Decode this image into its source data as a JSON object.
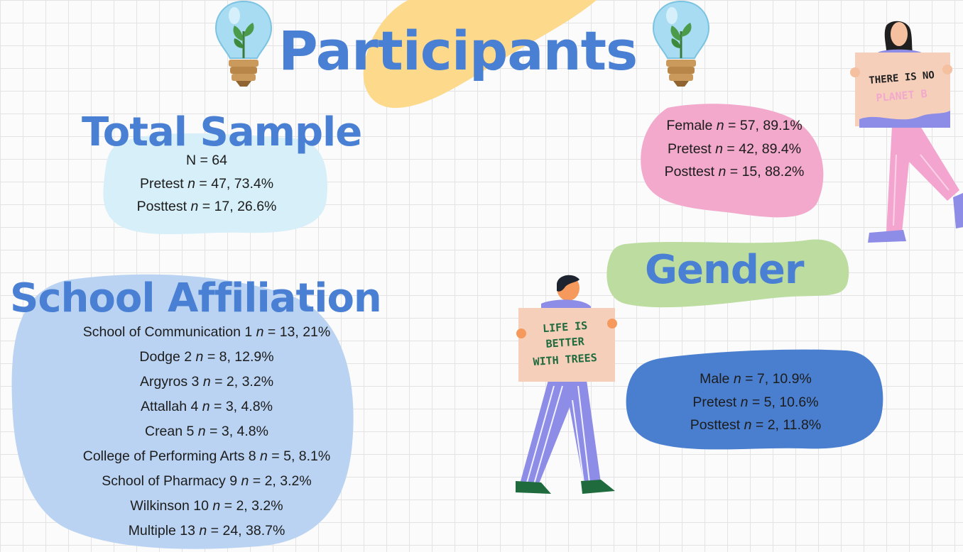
{
  "title": "Participants",
  "total_sample": {
    "heading": "Total Sample",
    "lines": [
      {
        "pre": "N = 64",
        "italic": "",
        "post": ""
      },
      {
        "pre": "Pretest ",
        "italic": "n",
        "post": " = 47, 73.4%"
      },
      {
        "pre": "Posttest ",
        "italic": "n",
        "post": " = 17, 26.6%"
      }
    ]
  },
  "gender": {
    "heading": "Gender",
    "female": [
      {
        "pre": "Female ",
        "italic": "n",
        "post": " = 57, 89.1%"
      },
      {
        "pre": "Pretest ",
        "italic": "n",
        "post": " = 42, 89.4%"
      },
      {
        "pre": "Posttest ",
        "italic": "n",
        "post": " = 15, 88.2%"
      }
    ],
    "male": [
      {
        "pre": "Male ",
        "italic": "n",
        "post": " = 7, 10.9%"
      },
      {
        "pre": "Pretest ",
        "italic": "n",
        "post": " = 5, 10.6%"
      },
      {
        "pre": "Posttest ",
        "italic": "n",
        "post": " = 2, 11.8%"
      }
    ]
  },
  "school_affiliation": {
    "heading": "School Affiliation",
    "lines": [
      {
        "pre": "School of Communication 1 ",
        "italic": "n",
        "post": " = 13, 21%"
      },
      {
        "pre": "Dodge 2 ",
        "italic": "n",
        "post": " = 8, 12.9%"
      },
      {
        "pre": "Argyros 3 ",
        "italic": "n",
        "post": " = 2, 3.2%"
      },
      {
        "pre": "Attallah 4 ",
        "italic": "n",
        "post": " = 3, 4.8%"
      },
      {
        "pre": "Crean 5 ",
        "italic": "n",
        "post": " = 3, 4.8%"
      },
      {
        "pre": "College of Performing Arts 8 ",
        "italic": "n",
        "post": " = 5, 8.1%"
      },
      {
        "pre": "School of Pharmacy 9 ",
        "italic": "n",
        "post": " = 2, 3.2%"
      },
      {
        "pre": "Wilkinson 10 ",
        "italic": "n",
        "post": " = 2, 3.2%"
      },
      {
        "pre": "Multiple 13 ",
        "italic": "n",
        "post": " = 24, 38.7%"
      }
    ]
  },
  "signs": {
    "woman_sign": [
      "THERE IS NO",
      "PLANET B"
    ],
    "man_sign": [
      "LIFE IS",
      "BETTER",
      "WITH TREES"
    ]
  },
  "colors": {
    "heading_blue": "#4a80d4",
    "blob_yellow": "#fdd98c",
    "blob_light_blue": "#d6eff8",
    "blob_blue": "#bad3f2",
    "blob_pink": "#f2a9cc",
    "blob_green": "#bcdca0",
    "blob_dark_blue": "#4a7fd0"
  },
  "icons": [
    "lightbulb-plant-icon",
    "lightbulb-plant-icon",
    "woman-with-sign-illustration",
    "man-with-sign-illustration"
  ]
}
